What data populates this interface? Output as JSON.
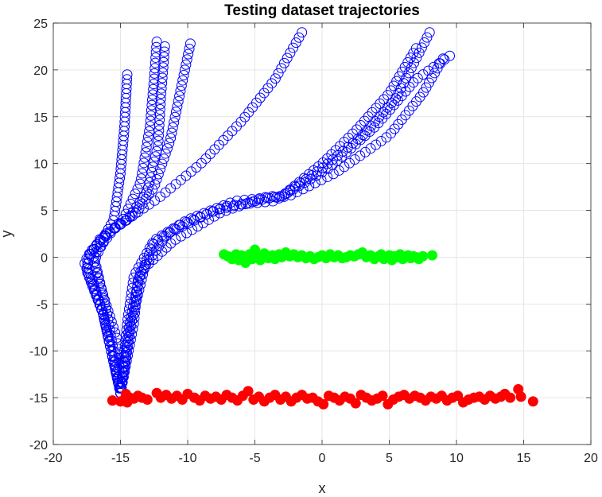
{
  "chart_data": {
    "type": "scatter",
    "title": "Testing dataset trajectories",
    "xlabel": "x",
    "ylabel": "y",
    "xlim": [
      -20,
      20
    ],
    "ylim": [
      -20,
      25
    ],
    "xticks": [
      -20,
      -15,
      -10,
      -5,
      0,
      5,
      10,
      15,
      20
    ],
    "yticks": [
      -20,
      -15,
      -10,
      -5,
      0,
      5,
      10,
      15,
      20,
      25
    ],
    "grid": true,
    "colors": {
      "trajectory": "#0000ff",
      "green": "#00ff00",
      "red": "#ff0000",
      "grid": "#e6e6e6",
      "axis": "#262626"
    },
    "series": [
      {
        "marker": "open-circle",
        "color": "#0000ff",
        "trajectories": [
          {
            "waypoints": [
              [
                -15.0,
                -14.5
              ],
              [
                -16.3,
                -6.0
              ],
              [
                -17.5,
                -1.5
              ],
              [
                -17.3,
                0.5
              ],
              [
                -16.3,
                2.0
              ],
              [
                -15.5,
                4.0
              ],
              [
                -15.0,
                9.0
              ],
              [
                -14.7,
                14.0
              ],
              [
                -14.5,
                19.5
              ]
            ],
            "n": 70
          },
          {
            "waypoints": [
              [
                -15.0,
                -14.5
              ],
              [
                -16.3,
                -6.0
              ],
              [
                -17.7,
                -0.5
              ],
              [
                -16.5,
                1.8
              ],
              [
                -14.8,
                4.0
              ],
              [
                -13.5,
                8.0
              ],
              [
                -12.8,
                14.0
              ],
              [
                -12.5,
                19.0
              ],
              [
                -12.3,
                23.0
              ]
            ],
            "n": 70
          },
          {
            "waypoints": [
              [
                -15.0,
                -14.5
              ],
              [
                -16.3,
                -6.0
              ],
              [
                -17.5,
                -0.5
              ],
              [
                -16.5,
                2.0
              ],
              [
                -14.5,
                4.0
              ],
              [
                -13.0,
                7.0
              ],
              [
                -12.2,
                12.0
              ],
              [
                -12.0,
                17.0
              ],
              [
                -11.7,
                22.5
              ]
            ],
            "n": 70
          },
          {
            "waypoints": [
              [
                -15.0,
                -14.5
              ],
              [
                -16.0,
                -6.0
              ],
              [
                -17.0,
                0.2
              ],
              [
                -15.5,
                3.0
              ],
              [
                -13.8,
                4.8
              ],
              [
                -12.5,
                7.5
              ],
              [
                -11.3,
                12.5
              ],
              [
                -10.5,
                18.0
              ],
              [
                -9.8,
                22.8
              ]
            ],
            "n": 70
          },
          {
            "waypoints": [
              [
                -15.0,
                -14.5
              ],
              [
                -14.0,
                -7.0
              ],
              [
                -13.7,
                -2.5
              ],
              [
                -12.5,
                1.5
              ],
              [
                -10.5,
                3.5
              ],
              [
                -7.0,
                5.5
              ],
              [
                -3.5,
                6.0
              ],
              [
                0.0,
                9.5
              ],
              [
                3.0,
                13.0
              ],
              [
                5.5,
                17.0
              ],
              [
                8.0,
                24.0
              ]
            ],
            "n": 85
          },
          {
            "waypoints": [
              [
                -15.0,
                -14.5
              ],
              [
                -14.5,
                -7.0
              ],
              [
                -14.0,
                -2.0
              ],
              [
                -12.5,
                1.8
              ],
              [
                -10.0,
                4.0
              ],
              [
                -6.5,
                6.0
              ],
              [
                -3.0,
                6.5
              ],
              [
                0.5,
                9.5
              ],
              [
                4.0,
                14.0
              ],
              [
                7.0,
                19.0
              ],
              [
                9.5,
                21.5
              ]
            ],
            "n": 85
          },
          {
            "waypoints": [
              [
                -15.0,
                -14.5
              ],
              [
                -14.2,
                -7.0
              ],
              [
                -13.2,
                -1.0
              ],
              [
                -11.5,
                2.5
              ],
              [
                -8.0,
                5.0
              ],
              [
                -4.0,
                6.3
              ],
              [
                -2.5,
                6.5
              ],
              [
                1.0,
                9.0
              ],
              [
                5.0,
                13.0
              ],
              [
                7.5,
                17.5
              ],
              [
                9.0,
                21.2
              ]
            ],
            "n": 85
          },
          {
            "waypoints": [
              [
                -15.0,
                -14.5
              ],
              [
                -14.3,
                -7.0
              ],
              [
                -13.5,
                -1.5
              ],
              [
                -11.0,
                1.8
              ],
              [
                -7.5,
                4.8
              ],
              [
                -4.0,
                6.5
              ],
              [
                -3.0,
                6.5
              ],
              [
                0.0,
                10.0
              ],
              [
                2.5,
                13.5
              ],
              [
                5.0,
                17.5
              ],
              [
                7.0,
                22.3
              ]
            ],
            "n": 85
          },
          {
            "waypoints": [
              [
                -15.0,
                -14.5
              ],
              [
                -15.2,
                -9.0
              ],
              [
                -16.3,
                -4.0
              ],
              [
                -17.0,
                -0.5
              ],
              [
                -16.0,
                2.5
              ],
              [
                -12.0,
                6.5
              ],
              [
                -9.0,
                10.0
              ],
              [
                -6.0,
                14.5
              ],
              [
                -3.5,
                19.0
              ],
              [
                -1.5,
                24.0
              ]
            ],
            "n": 75
          }
        ]
      },
      {
        "marker": "filled-circle",
        "color": "#00ff00",
        "x": [
          -7.3,
          -7.0,
          -6.7,
          -6.4,
          -6.2,
          -6.0,
          -5.7,
          -5.4,
          -5.2,
          -5.0,
          -4.8,
          -4.6,
          -4.3,
          -4.0,
          -3.7,
          -3.5,
          -3.2,
          -3.0,
          -2.7,
          -2.4,
          -2.1,
          -1.8,
          -1.5,
          -1.2,
          -0.9,
          -0.6,
          -0.3,
          0.0,
          0.3,
          0.6,
          0.9,
          1.2,
          1.5,
          1.8,
          2.1,
          2.4,
          2.7,
          3.0,
          3.3,
          3.6,
          3.9,
          4.2,
          4.4,
          4.6,
          4.8,
          5.0,
          5.2,
          5.4,
          5.6,
          5.8,
          6.0,
          6.2,
          6.4,
          6.6,
          6.8,
          7.0,
          7.2,
          7.5,
          8.2
        ],
        "y": [
          0.3,
          0.1,
          -0.2,
          0.3,
          -0.3,
          0.2,
          -0.6,
          0.3,
          -0.2,
          0.8,
          0.1,
          -0.3,
          0.4,
          -0.1,
          0.2,
          -0.2,
          0.3,
          0.0,
          0.5,
          0.1,
          0.3,
          0.0,
          0.2,
          -0.1,
          0.1,
          -0.2,
          0.0,
          0.2,
          -0.1,
          0.3,
          0.0,
          0.2,
          -0.1,
          0.0,
          0.2,
          0.1,
          0.3,
          0.5,
          0.0,
          0.2,
          -0.2,
          0.1,
          0.3,
          -0.2,
          0.0,
          0.2,
          -0.3,
          0.1,
          0.0,
          0.3,
          -0.2,
          0.0,
          0.2,
          -0.1,
          0.1,
          0.0,
          -0.2,
          0.1,
          0.2
        ]
      },
      {
        "marker": "filled-circle",
        "color": "#ff0000",
        "x": [
          -15.6,
          -15.0,
          -14.7,
          -14.6,
          -14.5,
          -14.3,
          -14.0,
          -13.7,
          -13.4,
          -13.0,
          -12.3,
          -12.0,
          -11.6,
          -11.2,
          -10.8,
          -10.4,
          -10.0,
          -9.5,
          -9.1,
          -8.7,
          -8.3,
          -7.9,
          -7.5,
          -7.1,
          -6.7,
          -6.3,
          -5.9,
          -5.5,
          -5.1,
          -4.7,
          -4.3,
          -3.9,
          -3.5,
          -3.1,
          -2.7,
          -2.3,
          -1.9,
          -1.5,
          -1.1,
          -0.7,
          -0.3,
          0.1,
          0.5,
          0.9,
          1.3,
          1.7,
          2.1,
          2.5,
          2.9,
          3.3,
          3.7,
          4.1,
          4.5,
          4.9,
          5.3,
          5.7,
          6.1,
          6.5,
          6.9,
          7.3,
          7.7,
          8.1,
          8.5,
          8.9,
          9.3,
          9.7,
          10.1,
          10.5,
          10.9,
          11.3,
          11.7,
          12.1,
          12.5,
          12.9,
          13.3,
          13.6,
          14.0,
          14.6,
          14.8,
          15.7
        ],
        "y": [
          -15.3,
          -15.4,
          -15.2,
          -14.6,
          -15.5,
          -15.0,
          -15.1,
          -14.8,
          -15.0,
          -15.2,
          -14.5,
          -15.0,
          -14.7,
          -15.1,
          -14.8,
          -15.2,
          -14.6,
          -15.0,
          -15.3,
          -14.8,
          -15.1,
          -14.9,
          -15.2,
          -14.7,
          -15.0,
          -15.3,
          -14.8,
          -14.3,
          -15.2,
          -14.9,
          -15.4,
          -15.0,
          -14.7,
          -15.2,
          -14.9,
          -15.4,
          -15.0,
          -14.7,
          -15.1,
          -15.0,
          -15.4,
          -15.7,
          -14.8,
          -15.0,
          -15.3,
          -14.9,
          -15.1,
          -15.6,
          -14.7,
          -15.0,
          -15.3,
          -15.1,
          -14.8,
          -15.7,
          -15.2,
          -14.9,
          -14.7,
          -15.1,
          -14.8,
          -15.0,
          -15.3,
          -14.9,
          -15.1,
          -14.8,
          -15.3,
          -15.0,
          -14.8,
          -15.5,
          -15.2,
          -15.0,
          -14.9,
          -15.2,
          -14.8,
          -15.1,
          -14.9,
          -14.6,
          -15.0,
          -14.1,
          -14.9,
          -15.4
        ]
      }
    ]
  }
}
